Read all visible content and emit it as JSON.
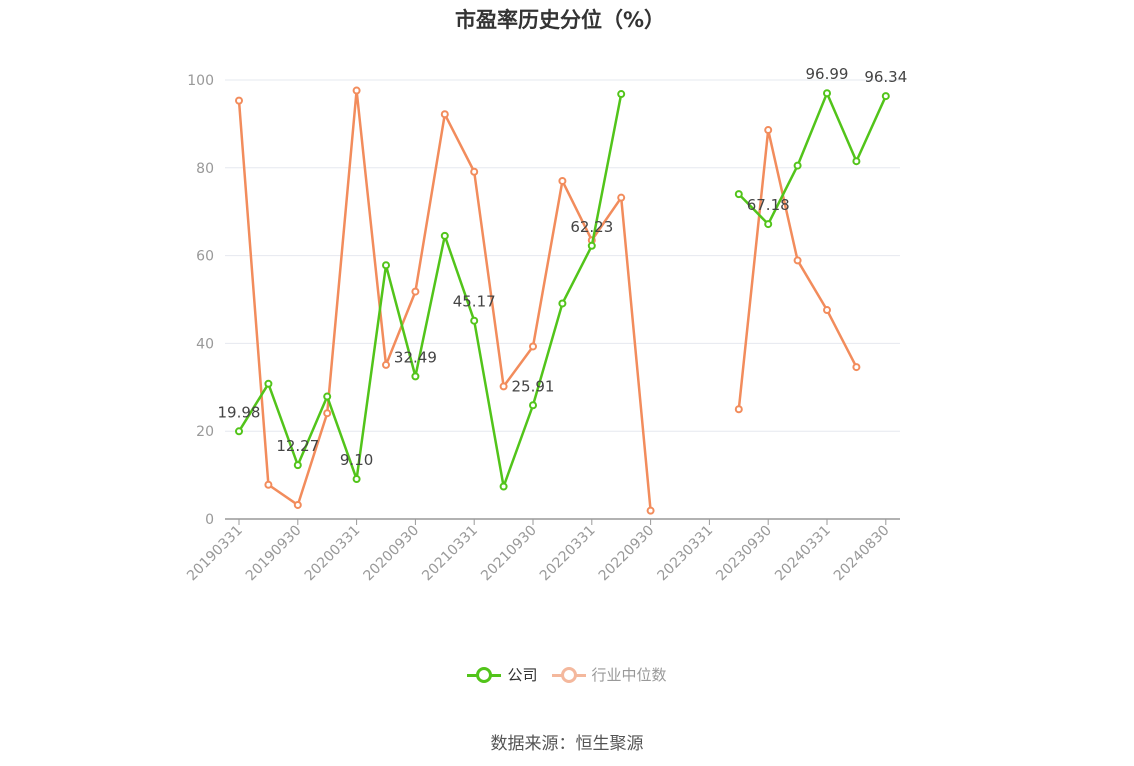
{
  "chart_data": {
    "type": "line",
    "title": "市盈率历史分位（%）",
    "ylim": [
      0,
      100
    ],
    "yticks": [
      0,
      20,
      40,
      60,
      80,
      100
    ],
    "x": [
      "20190331",
      "20190630",
      "20190930",
      "20191231",
      "20200331",
      "20200630",
      "20200930",
      "20201231",
      "20210331",
      "20210630",
      "20210930",
      "20211231",
      "20220331",
      "20220630",
      "20220930",
      "20221231",
      "20230331",
      "20230630",
      "20230930",
      "20231231",
      "20240331",
      "20240630",
      "20240830"
    ],
    "xticklabels": [
      "20190331",
      "20190930",
      "20200331",
      "20200930",
      "20210331",
      "20210930",
      "20220331",
      "20220930",
      "20230331",
      "20230930",
      "20240331",
      "20240830"
    ],
    "grid": true,
    "legend_position": "bottom",
    "series": [
      {
        "name": "公司",
        "color": "#52c41a",
        "values": [
          19.98,
          30.8,
          12.27,
          27.9,
          9.1,
          57.8,
          32.49,
          64.5,
          45.17,
          7.4,
          25.91,
          49.1,
          62.23,
          96.8,
          null,
          null,
          null,
          74.0,
          67.18,
          80.5,
          96.99,
          81.5,
          96.34
        ],
        "labels": {
          "0": "19.98",
          "2": "12.27",
          "4": "9.10",
          "6": "32.49",
          "8": "45.17",
          "10": "25.91",
          "12": "62.23",
          "18": "67.18",
          "20": "96.99",
          "22": "96.34"
        }
      },
      {
        "name": "行业中位数",
        "color": "#f28c5c",
        "values": [
          95.3,
          7.8,
          3.2,
          24.1,
          97.6,
          35.1,
          51.8,
          92.2,
          79.1,
          30.2,
          39.3,
          77.0,
          63.5,
          73.2,
          1.9,
          null,
          null,
          25.0,
          88.6,
          58.9,
          47.6,
          34.6,
          null
        ],
        "labels": {}
      }
    ]
  },
  "legend": {
    "items": [
      {
        "label": "公司",
        "color": "#52c41a"
      },
      {
        "label": "行业中位数",
        "color": "#f4b89d"
      }
    ]
  },
  "source_text": "数据来源：恒生聚源"
}
